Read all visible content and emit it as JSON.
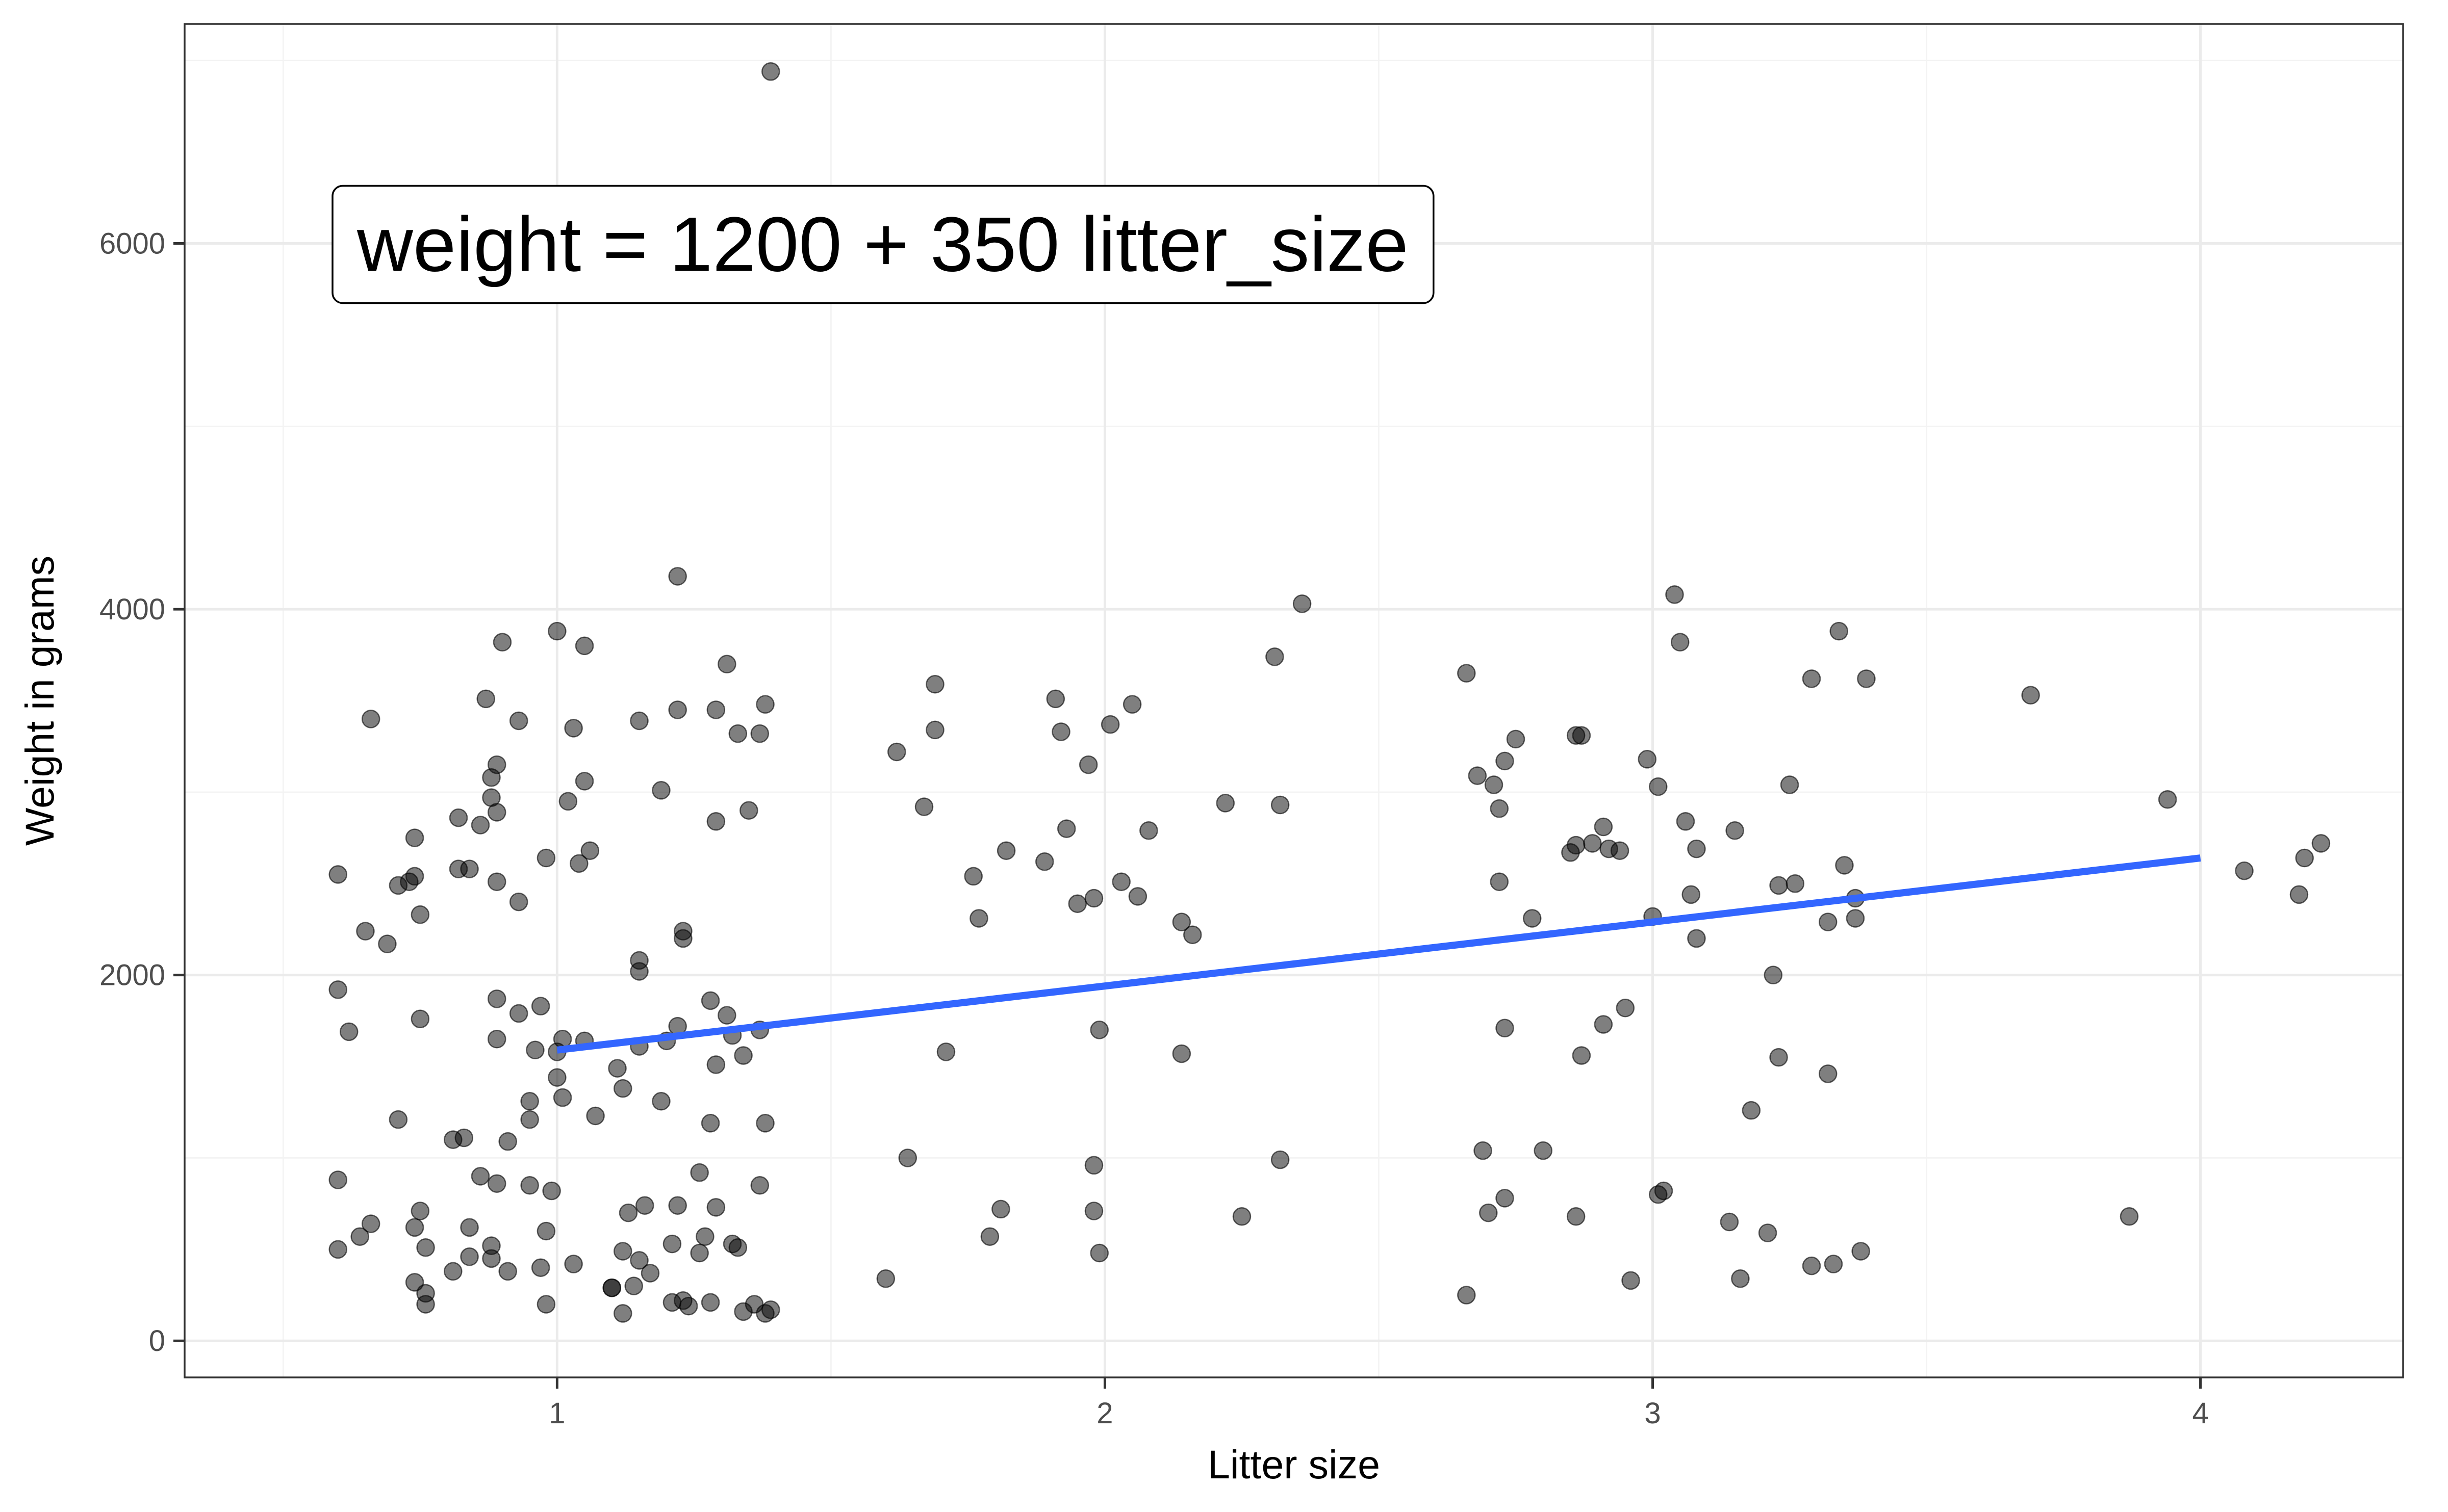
{
  "chart_data": {
    "type": "scatter",
    "title": "",
    "xlabel": "Litter size",
    "ylabel": "Weight in grams",
    "xlim": [
      0.32,
      4.37
    ],
    "ylim": [
      -200,
      7200
    ],
    "x_ticks": [
      1,
      2,
      3,
      4
    ],
    "x_tick_labels": [
      "1",
      "2",
      "3",
      "4"
    ],
    "y_ticks": [
      0,
      2000,
      4000,
      6000
    ],
    "y_tick_labels": [
      "0",
      "2000",
      "4000",
      "6000"
    ],
    "grid": true,
    "legend": "none",
    "points_color": "#000000",
    "points_opacity": 0.5,
    "line_color": "#3366ff",
    "annotation": {
      "text": "weight = 1200 + 350 litter_size",
      "x": 0.59,
      "y": 6000
    },
    "regression": {
      "intercept": 1240,
      "slope": 350,
      "x_range": [
        1,
        4
      ]
    },
    "series": [
      {
        "x": [
          1.39,
          1.22,
          0.66,
          1.0,
          1.05,
          1.31,
          1.29,
          1.38,
          0.87,
          0.9,
          1.37,
          0.93,
          1.03,
          1.15,
          1.22,
          1.33,
          0.89,
          0.88,
          1.05,
          1.19,
          0.88,
          1.02,
          0.89,
          0.86,
          1.35,
          1.29,
          0.98,
          1.06,
          0.82,
          0.74,
          0.6,
          1.04,
          0.73,
          0.84,
          0.82,
          0.71,
          0.74,
          0.89,
          1.23,
          0.65,
          0.93,
          0.75,
          1.23,
          1.15,
          0.69,
          1.15,
          0.6,
          1.01,
          1.28,
          0.89,
          0.97,
          0.93,
          1.37,
          1.22,
          0.62,
          0.75,
          0.89,
          1.31,
          1.32,
          1.2,
          0.96,
          1.15,
          1.05,
          1.34,
          1.0,
          1.29,
          1.11,
          1.12,
          1.0,
          0.95,
          1.01,
          1.07,
          1.19,
          0.95,
          0.91,
          1.28,
          0.71,
          0.83,
          1.38,
          0.81,
          1.26,
          0.86,
          0.89,
          1.37,
          0.6,
          1.22,
          0.99,
          0.95,
          1.13,
          1.16,
          1.29,
          0.75,
          0.84,
          0.74,
          0.66,
          0.98,
          1.27,
          1.32,
          0.64,
          0.84,
          0.76,
          1.26,
          0.88,
          1.15,
          1.03,
          0.6,
          0.91,
          1.33,
          1.12,
          0.81,
          1.21,
          0.97,
          1.1,
          0.88,
          1.17,
          1.14,
          0.74,
          1.1,
          0.76,
          1.21,
          0.76,
          1.23,
          1.36,
          1.34,
          1.38,
          1.12,
          0.98,
          1.39,
          1.28,
          1.24
        ],
        "y": [
          6940,
          4180,
          3400,
          3880,
          3800,
          3700,
          3450,
          3480,
          3510,
          3820,
          3320,
          3390,
          3350,
          3390,
          3450,
          3320,
          3150,
          3080,
          3060,
          3010,
          2970,
          2950,
          2890,
          2820,
          2900,
          2840,
          2640,
          2680,
          2860,
          2750,
          2550,
          2610,
          2510,
          2580,
          2580,
          2490,
          2540,
          2510,
          2240,
          2240,
          2400,
          2330,
          2200,
          2080,
          2170,
          2020,
          1920,
          1650,
          1860,
          1870,
          1830,
          1790,
          1700,
          1720,
          1690,
          1760,
          1650,
          1780,
          1670,
          1640,
          1590,
          1610,
          1640,
          1560,
          1580,
          1510,
          1490,
          1380,
          1440,
          1310,
          1330,
          1230,
          1310,
          1210,
          1090,
          1190,
          1210,
          1110,
          1190,
          1100,
          920,
          900,
          860,
          850,
          880,
          740,
          820,
          850,
          700,
          740,
          730,
          710,
          620,
          620,
          640,
          600,
          570,
          530,
          570,
          460,
          510,
          480,
          520,
          440,
          420,
          500,
          380,
          510,
          490,
          380,
          530,
          400,
          290,
          450,
          370,
          300,
          320,
          290,
          260,
          210,
          200,
          220,
          200,
          160,
          150,
          150,
          200,
          170,
          210,
          190
        ]
      },
      {
        "x": [
          2.36,
          2.31,
          1.69,
          1.91,
          2.05,
          1.69,
          1.92,
          2.01,
          1.62,
          1.97,
          1.67,
          2.22,
          2.32,
          1.93,
          2.08,
          1.82,
          1.89,
          2.03,
          1.76,
          1.98,
          1.95,
          2.06,
          1.77,
          2.14,
          2.16,
          1.99,
          1.71,
          2.14,
          1.64,
          1.98,
          2.32,
          1.98,
          1.81,
          2.25,
          1.79,
          1.99,
          1.6
        ],
        "y": [
          4030,
          3740,
          3590,
          3510,
          3480,
          3340,
          3330,
          3370,
          3220,
          3150,
          2920,
          2940,
          2930,
          2800,
          2790,
          2680,
          2620,
          2510,
          2540,
          2420,
          2390,
          2430,
          2310,
          2290,
          2220,
          1700,
          1580,
          1570,
          1000,
          960,
          990,
          710,
          720,
          680,
          570,
          480,
          340
        ]
      },
      {
        "x": [
          3.04,
          3.05,
          3.34,
          3.29,
          3.39,
          2.66,
          2.75,
          2.86,
          2.87,
          2.73,
          2.99,
          2.68,
          3.01,
          2.71,
          2.72,
          3.25,
          3.06,
          3.15,
          2.91,
          2.89,
          2.86,
          2.92,
          2.94,
          3.08,
          2.85,
          3.35,
          2.72,
          3.26,
          3.23,
          3.07,
          3.37,
          2.78,
          3.0,
          3.32,
          3.37,
          3.08,
          3.22,
          2.95,
          2.91,
          2.73,
          2.87,
          3.23,
          3.32,
          3.18,
          2.69,
          2.8,
          3.02,
          3.01,
          2.73,
          2.7,
          2.86,
          3.14,
          3.21,
          3.38,
          3.29,
          3.33,
          3.16,
          2.96,
          2.66
        ],
        "y": [
          4080,
          3820,
          3880,
          3620,
          3620,
          3650,
          3290,
          3310,
          3310,
          3170,
          3180,
          3090,
          3030,
          3040,
          2910,
          3040,
          2840,
          2790,
          2810,
          2720,
          2710,
          2690,
          2680,
          2690,
          2670,
          2600,
          2510,
          2500,
          2490,
          2440,
          2420,
          2310,
          2320,
          2290,
          2310,
          2200,
          2000,
          1820,
          1730,
          1710,
          1560,
          1550,
          1460,
          1260,
          1040,
          1040,
          820,
          800,
          780,
          700,
          680,
          650,
          590,
          490,
          410,
          420,
          340,
          330,
          250
        ]
      },
      {
        "x": [
          3.69,
          3.94,
          4.08,
          4.19,
          4.22,
          4.18,
          3.87
        ],
        "y": [
          3530,
          2960,
          2570,
          2640,
          2720,
          2440,
          680
        ]
      }
    ]
  }
}
